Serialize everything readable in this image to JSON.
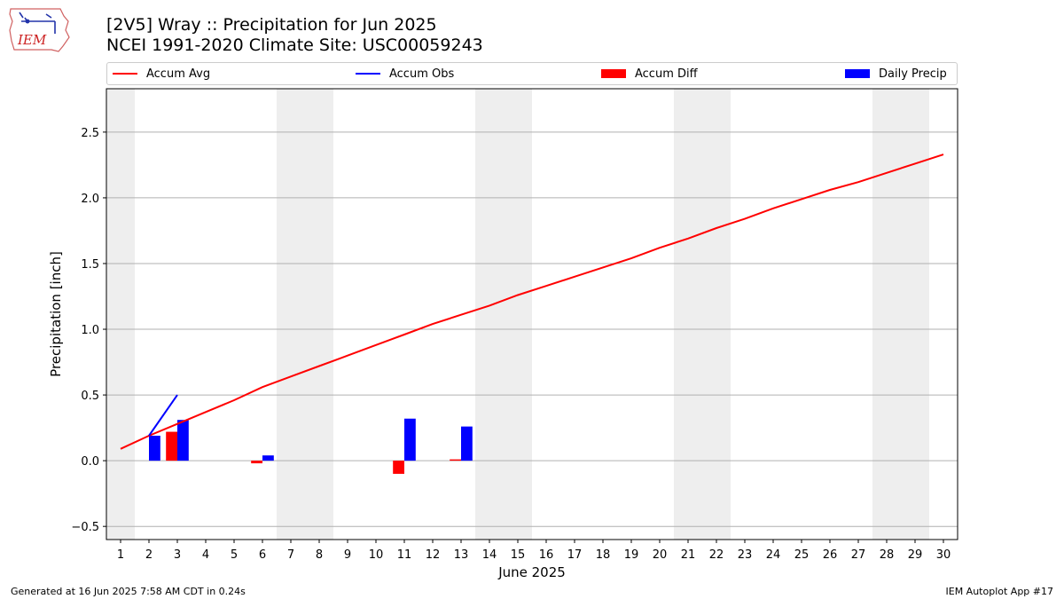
{
  "logo": {
    "text": "IEM"
  },
  "title": {
    "line1": "[2V5] Wray :: Precipitation for Jun 2025",
    "line2": "NCEI 1991-2020 Climate Site: USC00059243"
  },
  "legend": {
    "accum_avg": "Accum Avg",
    "accum_obs": "Accum Obs",
    "accum_diff": "Accum Diff",
    "daily_precip": "Daily Precip"
  },
  "colors": {
    "accum_avg": "#ff0000",
    "accum_obs": "#0000ff",
    "accum_diff": "#ff0000",
    "daily_precip": "#0000ff",
    "weekend_band": "#eeeeee",
    "grid": "#b0b0b0"
  },
  "footer": {
    "left": "Generated at 16 Jun 2025 7:58 AM CDT in 0.24s",
    "right": "IEM Autoplot App #17"
  },
  "chart_data": {
    "type": "bar",
    "xlabel": "June 2025",
    "ylabel": "Precipitation [inch]",
    "xlim": [
      0.5,
      30.5
    ],
    "ylim": [
      -0.6,
      2.83
    ],
    "yticks": [
      -0.5,
      0.0,
      0.5,
      1.0,
      1.5,
      2.0,
      2.5
    ],
    "ytick_labels": [
      "−0.5",
      "0.0",
      "0.5",
      "1.0",
      "1.5",
      "2.0",
      "2.5"
    ],
    "x": [
      1,
      2,
      3,
      4,
      5,
      6,
      7,
      8,
      9,
      10,
      11,
      12,
      13,
      14,
      15,
      16,
      17,
      18,
      19,
      20,
      21,
      22,
      23,
      24,
      25,
      26,
      27,
      28,
      29,
      30
    ],
    "xtick_labels": [
      "1",
      "2",
      "3",
      "4",
      "5",
      "6",
      "7",
      "8",
      "9",
      "10",
      "11",
      "12",
      "13",
      "14",
      "15",
      "16",
      "17",
      "18",
      "19",
      "20",
      "21",
      "22",
      "23",
      "24",
      "25",
      "26",
      "27",
      "28",
      "29",
      "30"
    ],
    "weekend_days": [
      1,
      7,
      8,
      14,
      15,
      21,
      22,
      28,
      29
    ],
    "grid": "horizontal",
    "legend_position": "top",
    "series": [
      {
        "name": "Accum Avg",
        "kind": "line",
        "x": [
          1,
          2,
          3,
          4,
          5,
          6,
          7,
          8,
          9,
          10,
          11,
          12,
          13,
          14,
          15,
          16,
          17,
          18,
          19,
          20,
          21,
          22,
          23,
          24,
          25,
          26,
          27,
          28,
          29,
          30
        ],
        "values": [
          0.09,
          0.19,
          0.28,
          0.37,
          0.46,
          0.56,
          0.64,
          0.72,
          0.8,
          0.88,
          0.96,
          1.04,
          1.11,
          1.18,
          1.26,
          1.33,
          1.4,
          1.47,
          1.54,
          1.62,
          1.69,
          1.77,
          1.84,
          1.92,
          1.99,
          2.06,
          2.12,
          2.19,
          2.26,
          2.33
        ]
      },
      {
        "name": "Accum Obs",
        "kind": "line",
        "x": [
          2,
          3
        ],
        "values": [
          0.19,
          0.5
        ]
      },
      {
        "name": "Accum Diff",
        "kind": "bar",
        "offset": -0.2,
        "x": [
          3,
          6,
          11,
          13
        ],
        "values": [
          0.22,
          -0.02,
          -0.1,
          0.01
        ]
      },
      {
        "name": "Daily Precip",
        "kind": "bar",
        "offset": 0.2,
        "x": [
          2,
          3,
          6,
          11,
          13
        ],
        "values": [
          0.19,
          0.31,
          0.04,
          0.32,
          0.26
        ]
      }
    ]
  }
}
